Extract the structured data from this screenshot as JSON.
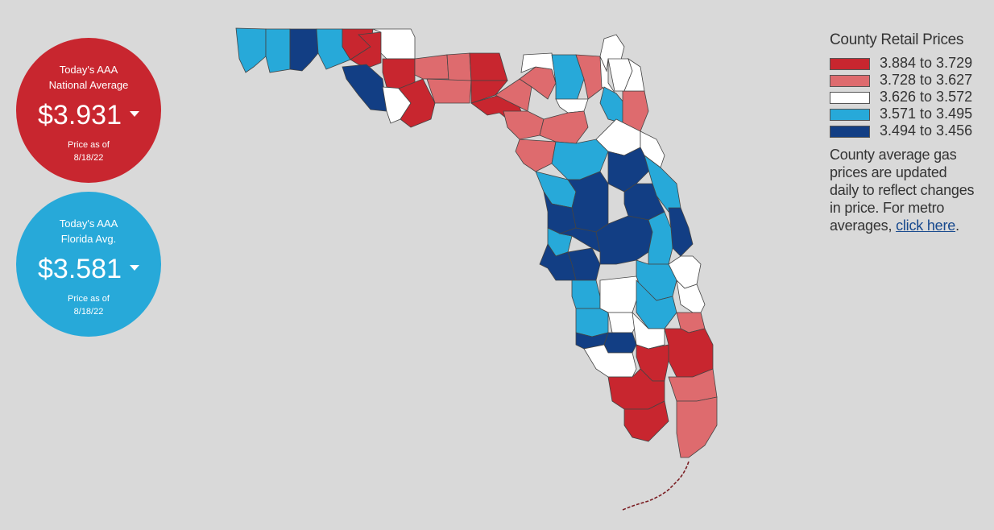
{
  "national": {
    "title_line1": "Today's AAA",
    "title_line2": "National Average",
    "price": "$3.931",
    "asof_line1": "Price as of",
    "asof_line2": "8/18/22",
    "color": "#c8262f"
  },
  "florida": {
    "title_line1": "Today's AAA",
    "title_line2": "Florida Avg.",
    "price": "$3.581",
    "asof_line1": "Price as of",
    "asof_line2": "8/18/22",
    "color": "#27a9d9"
  },
  "legend": {
    "title": "County Retail Prices",
    "ranges": [
      {
        "label": "3.884 to 3.729",
        "color": "#c8262f"
      },
      {
        "label": "3.728 to 3.627",
        "color": "#de6b6e"
      },
      {
        "label": "3.626 to 3.572",
        "color": "#ffffff"
      },
      {
        "label": "3.571 to 3.495",
        "color": "#27a9d9"
      },
      {
        "label": "3.494 to 3.456",
        "color": "#123e84"
      }
    ],
    "desc_line1": "County average gas",
    "desc_line2": "prices are updated",
    "desc_line3": "daily to reflect changes",
    "desc_line4": "in price. For metro",
    "desc_line5": "averages,",
    "link_text": "click here",
    "desc_end": "."
  },
  "map_colors": {
    "border": "#444444",
    "coast": "#7a1d22"
  }
}
